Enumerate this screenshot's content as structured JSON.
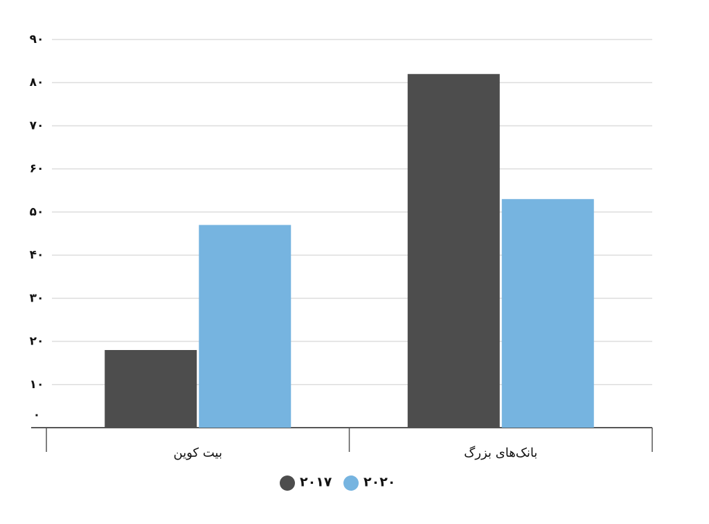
{
  "chart_data": {
    "type": "bar",
    "categories": [
      "بیت کوین",
      "بانک‌های بزرگ"
    ],
    "series": [
      {
        "name": "۲۰۱۷",
        "color": "#4d4d4d",
        "values": [
          18,
          82
        ]
      },
      {
        "name": "۲۰۲۰",
        "color": "#76b4e0",
        "values": [
          47,
          53
        ]
      }
    ],
    "ylim": [
      0,
      90
    ],
    "yticks": [
      {
        "value": 0,
        "label": "۰"
      },
      {
        "value": 10,
        "label": "۱۰"
      },
      {
        "value": 20,
        "label": "۲۰"
      },
      {
        "value": 30,
        "label": "۳۰"
      },
      {
        "value": 40,
        "label": "۴۰"
      },
      {
        "value": 50,
        "label": "۵۰"
      },
      {
        "value": 60,
        "label": "۶۰"
      },
      {
        "value": 70,
        "label": "۷۰"
      },
      {
        "value": 80,
        "label": "۸۰"
      },
      {
        "value": 90,
        "label": "۹۰"
      }
    ],
    "grid": true
  }
}
